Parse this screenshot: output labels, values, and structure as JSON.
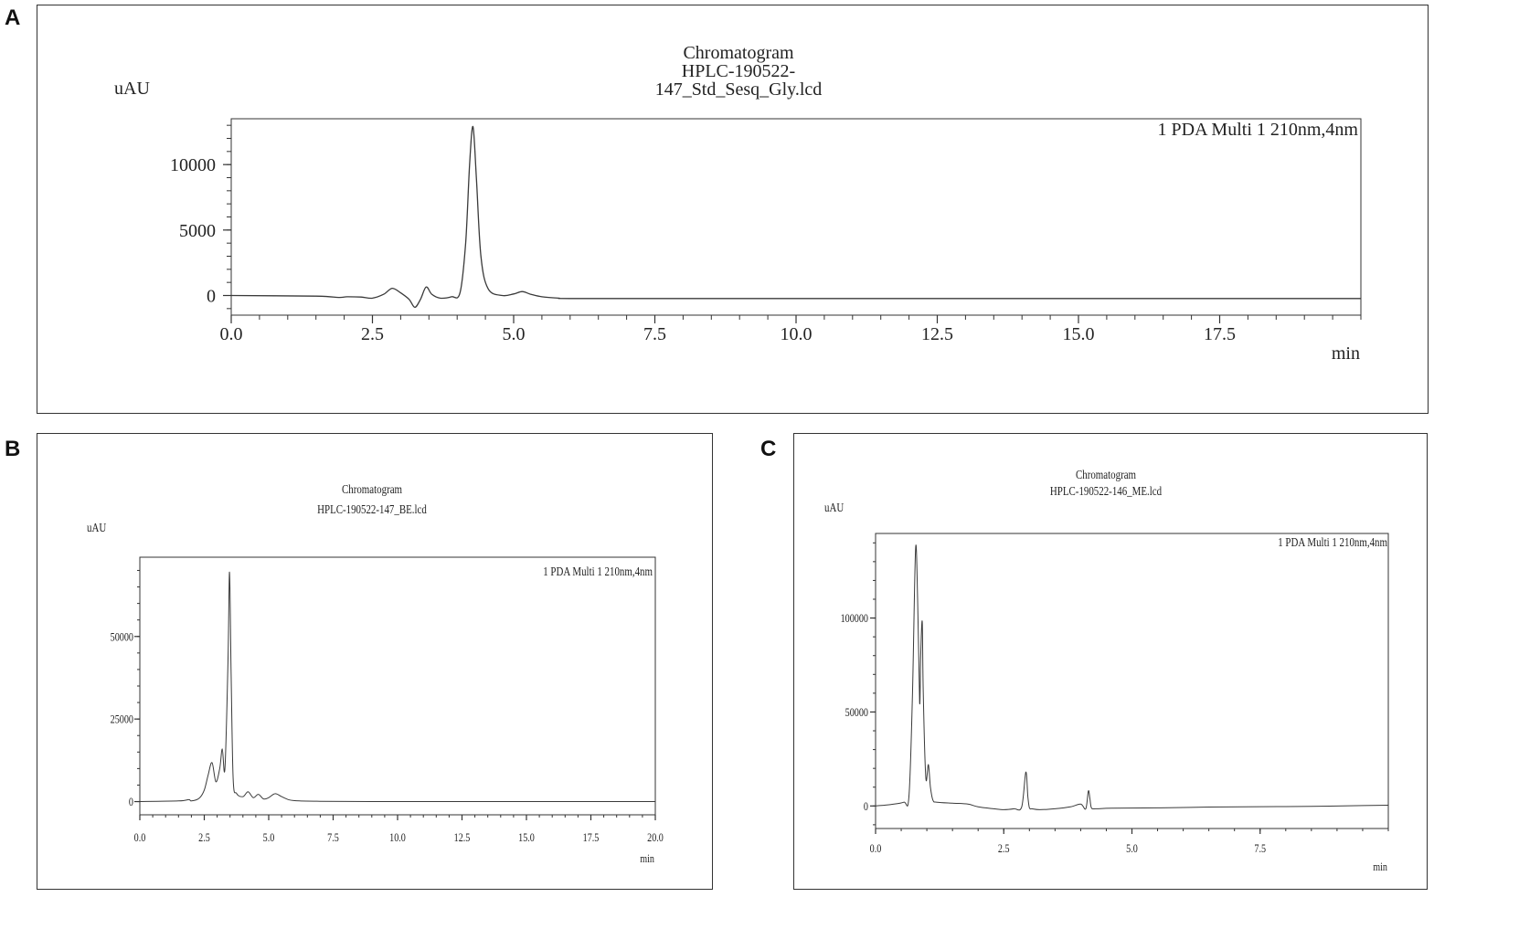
{
  "colors": {
    "trace": "#3a3a3a",
    "axis": "#333333",
    "frame": "#333333"
  },
  "chart_data": [
    {
      "panel_label": "A",
      "type": "line",
      "title": "Chromatogram",
      "subtitle_lines": [
        "HPLC-190522-",
        "147_Std_Sesq_Gly.lcd"
      ],
      "legend": "1 PDA Multi 1 210nm,4nm",
      "legend_position": "top-right",
      "xlabel": "min",
      "ylabel": "uAU",
      "xlim": [
        0,
        20
      ],
      "ylim": [
        -1500,
        13500
      ],
      "xticks": [
        0,
        2.5,
        5,
        7.5,
        10,
        12.5,
        15,
        17.5
      ],
      "xtick_labels": [
        "0.0",
        "2.5",
        "5.0",
        "7.5",
        "10.0",
        "12.5",
        "15.0",
        "17.5"
      ],
      "yticks": [
        0,
        5000,
        10000
      ],
      "ytick_labels": [
        "0",
        "5000",
        "10000"
      ],
      "series": [
        {
          "x": [
            0,
            1.5,
            1.9,
            2.05,
            2.3,
            2.5,
            2.7,
            2.85,
            3.0,
            3.15,
            3.25,
            3.35,
            3.45,
            3.55,
            3.7,
            3.9,
            4.05,
            4.15,
            4.22,
            4.28,
            4.34,
            4.42,
            4.55,
            4.8,
            5.0,
            5.15,
            5.3,
            5.5,
            5.8,
            6.0,
            8,
            10,
            12,
            14,
            16,
            18,
            20
          ],
          "y": [
            0,
            -50,
            -150,
            -100,
            -120,
            -200,
            100,
            550,
            200,
            -300,
            -900,
            -300,
            650,
            100,
            -200,
            -100,
            200,
            4000,
            10000,
            12900,
            9000,
            3000,
            500,
            0,
            120,
            300,
            100,
            -100,
            -200,
            -230,
            -230,
            -230,
            -230,
            -230,
            -230,
            -230,
            -230
          ]
        }
      ]
    },
    {
      "panel_label": "B",
      "type": "line",
      "title": "Chromatogram",
      "subtitle_lines": [
        "HPLC-190522-147_BE.lcd"
      ],
      "legend": "1 PDA Multi 1 210nm,4nm",
      "legend_position": "top-right",
      "xlabel": "min",
      "ylabel": "uAU",
      "xlim": [
        0,
        20
      ],
      "ylim": [
        -4000,
        74000
      ],
      "xticks": [
        0,
        2.5,
        5,
        7.5,
        10,
        12.5,
        15,
        17.5,
        20
      ],
      "xtick_labels": [
        "0.0",
        "2.5",
        "5.0",
        "7.5",
        "10.0",
        "12.5",
        "15.0",
        "17.5",
        "20.0"
      ],
      "yticks": [
        0,
        25000,
        50000
      ],
      "ytick_labels": [
        "0",
        "25000",
        "50000"
      ],
      "series": [
        {
          "x": [
            0,
            1.5,
            1.9,
            2.0,
            2.3,
            2.5,
            2.65,
            2.8,
            2.95,
            3.1,
            3.2,
            3.3,
            3.42,
            3.48,
            3.54,
            3.62,
            3.75,
            4.0,
            4.2,
            4.4,
            4.6,
            4.8,
            5.0,
            5.25,
            5.5,
            5.8,
            6.2,
            7,
            9,
            13,
            16,
            20
          ],
          "y": [
            0,
            200,
            600,
            200,
            1000,
            3500,
            8000,
            11800,
            6000,
            10000,
            16000,
            10000,
            42000,
            69500,
            40000,
            7000,
            2500,
            1500,
            3000,
            1200,
            2200,
            800,
            1200,
            2400,
            1500,
            500,
            200,
            100,
            0,
            0,
            0,
            0
          ]
        }
      ]
    },
    {
      "panel_label": "C",
      "type": "line",
      "title": "Chromatogram",
      "subtitle_lines": [
        "HPLC-190522-146_ME.lcd"
      ],
      "legend": "1 PDA Multi 1 210nm,4nm",
      "legend_position": "top-right",
      "xlabel": "min",
      "ylabel": "uAU",
      "xlim": [
        0,
        10
      ],
      "ylim": [
        -12000,
        145000
      ],
      "xticks": [
        0,
        2.5,
        5,
        7.5
      ],
      "xtick_labels": [
        "0.0",
        "2.5",
        "5.0",
        "7.5"
      ],
      "yticks": [
        0,
        50000,
        100000
      ],
      "ytick_labels": [
        "0",
        "50000",
        "100000"
      ],
      "series": [
        {
          "x": [
            0,
            0.3,
            0.55,
            0.65,
            0.72,
            0.78,
            0.82,
            0.86,
            0.88,
            0.91,
            0.93,
            0.98,
            1.03,
            1.07,
            1.12,
            1.2,
            1.5,
            1.8,
            2.0,
            2.3,
            2.5,
            2.7,
            2.85,
            2.93,
            2.97,
            3.0,
            3.05,
            3.2,
            3.5,
            3.8,
            4.0,
            4.1,
            4.15,
            4.18,
            4.21,
            4.3,
            4.6,
            5.5,
            6.5,
            7.5,
            8.5,
            9.5,
            10
          ],
          "y": [
            0,
            800,
            2000,
            5000,
            60000,
            137000,
            110000,
            55000,
            80000,
            98000,
            60000,
            15000,
            22000,
            10000,
            3000,
            2000,
            1500,
            1000,
            -500,
            -1500,
            -2000,
            -1500,
            -500,
            18000,
            5000,
            -1000,
            -1500,
            -2000,
            -1500,
            -500,
            1000,
            -1500,
            8000,
            4000,
            -1000,
            -1500,
            -1200,
            -1000,
            -600,
            -400,
            -200,
            200,
            400
          ]
        }
      ]
    }
  ]
}
